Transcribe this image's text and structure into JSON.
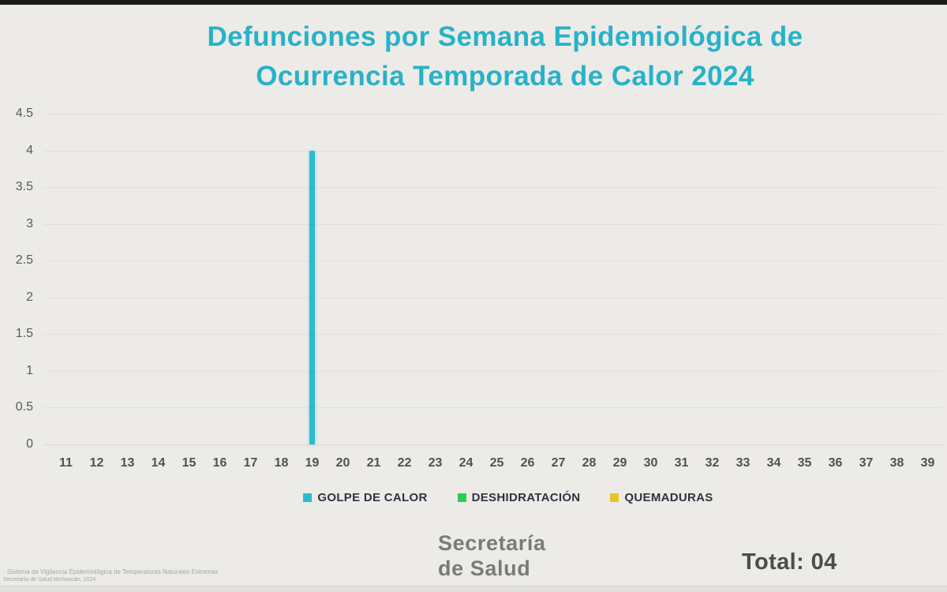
{
  "page": {
    "background": "#ecebe8",
    "top_bar_color": "#191919"
  },
  "title": {
    "line1": "Defunciones por Semana Epidemiológica de",
    "line2": "Ocurrencia  Temporada de Calor 2024",
    "color": "#27b2c8"
  },
  "chart_data": {
    "type": "bar",
    "title": "Defunciones por Semana Epidemiológica de Ocurrencia Temporada de Calor 2024",
    "xlabel": "",
    "ylabel": "",
    "categories": [
      11,
      12,
      13,
      14,
      15,
      16,
      17,
      18,
      19,
      20,
      21,
      22,
      23,
      24,
      25,
      26,
      27,
      28,
      29,
      30,
      31,
      32,
      33,
      34,
      35,
      36,
      37,
      38,
      39
    ],
    "series": [
      {
        "name": "GOLPE DE CALOR",
        "color": "#2abccd",
        "values": [
          0,
          0,
          0,
          0,
          0,
          0,
          0,
          0,
          4,
          0,
          0,
          0,
          0,
          0,
          0,
          0,
          0,
          0,
          0,
          0,
          0,
          0,
          0,
          0,
          0,
          0,
          0,
          0,
          0
        ]
      },
      {
        "name": "DESHIDRATACIÓN",
        "color": "#2ecc55",
        "values": [
          0,
          0,
          0,
          0,
          0,
          0,
          0,
          0,
          0,
          0,
          0,
          0,
          0,
          0,
          0,
          0,
          0,
          0,
          0,
          0,
          0,
          0,
          0,
          0,
          0,
          0,
          0,
          0,
          0
        ]
      },
      {
        "name": "QUEMADURAS",
        "color": "#e9c428",
        "values": [
          0,
          0,
          0,
          0,
          0,
          0,
          0,
          0,
          0,
          0,
          0,
          0,
          0,
          0,
          0,
          0,
          0,
          0,
          0,
          0,
          0,
          0,
          0,
          0,
          0,
          0,
          0,
          0,
          0
        ]
      }
    ],
    "ylim": [
      0,
      4.5
    ],
    "yticks": [
      0,
      0.5,
      1,
      1.5,
      2,
      2.5,
      3,
      3.5,
      4,
      4.5
    ],
    "grid": true,
    "legend_position": "bottom"
  },
  "footer": {
    "org_line1": "Secretaría",
    "org_line2": "de Salud",
    "total_label": "Total: 04"
  },
  "footnote": {
    "line1": "· Sistema de Vigilancia Epidemiológica de Temperaturas Naturales Extremas",
    "line2": "Secretaría de Salud Michoacán, 2024"
  }
}
